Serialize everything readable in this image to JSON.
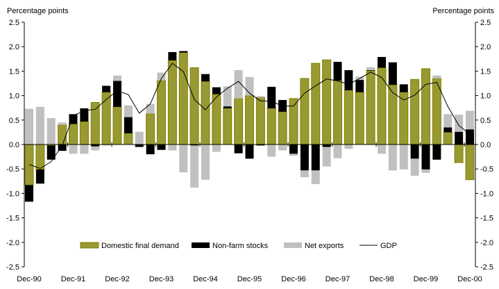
{
  "chart_data": {
    "type": "bar",
    "stacked": true,
    "title": "",
    "ylabel_left": "Percentage points",
    "ylabel_right": "Percentage points",
    "ylim": [
      -2.5,
      2.5
    ],
    "yticks": [
      "2.5",
      "2.0",
      "1.5",
      "1.0",
      "0.5",
      "0.0",
      "-0.5",
      "-1.0",
      "-1.5",
      "-2.0",
      "-2.5"
    ],
    "grid": false,
    "legend_position": "bottom-inside",
    "xtick_labels": [
      "Dec-90",
      "Dec-91",
      "Dec-92",
      "Dec-93",
      "Dec-94",
      "Dec-95",
      "Dec-96",
      "Dec-97",
      "Dec-98",
      "Dec-99",
      "Dec-00"
    ],
    "categories": [
      "Dec-90",
      "Mar-91",
      "Jun-91",
      "Sep-91",
      "Dec-91",
      "Mar-92",
      "Jun-92",
      "Sep-92",
      "Dec-92",
      "Mar-93",
      "Jun-93",
      "Sep-93",
      "Dec-93",
      "Mar-94",
      "Jun-94",
      "Sep-94",
      "Dec-94",
      "Mar-95",
      "Jun-95",
      "Sep-95",
      "Dec-95",
      "Mar-96",
      "Jun-96",
      "Sep-96",
      "Dec-96",
      "Mar-97",
      "Jun-97",
      "Sep-97",
      "Dec-97",
      "Mar-98",
      "Jun-98",
      "Sep-98",
      "Dec-98",
      "Mar-99",
      "Jun-99",
      "Sep-99",
      "Dec-99",
      "Mar-00",
      "Jun-00",
      "Sep-00",
      "Dec-00"
    ],
    "series": [
      {
        "name": "Domestic final demand",
        "kind": "bar",
        "color": "#999933",
        "border": "#808000",
        "values": [
          -0.83,
          -0.51,
          -0.02,
          0.4,
          0.42,
          0.47,
          0.86,
          1.07,
          0.77,
          0.23,
          0.0,
          0.63,
          1.31,
          1.72,
          1.88,
          1.57,
          1.29,
          1.03,
          0.74,
          0.94,
          1.0,
          0.96,
          0.74,
          0.67,
          0.94,
          1.35,
          1.66,
          1.73,
          1.31,
          1.11,
          1.07,
          1.51,
          1.57,
          1.22,
          1.07,
          1.33,
          1.55,
          1.35,
          0.25,
          -0.37,
          -0.72
        ]
      },
      {
        "name": "Non-farm stocks",
        "kind": "bar",
        "color": "#000000",
        "border": "#000000",
        "values": [
          -0.34,
          -0.29,
          -0.29,
          -0.13,
          0.2,
          0.27,
          -0.04,
          0.13,
          0.53,
          0.33,
          -0.05,
          -0.2,
          -0.11,
          0.17,
          0.03,
          -0.02,
          0.15,
          0.14,
          0.04,
          -0.18,
          -0.29,
          -0.02,
          0.44,
          0.24,
          -0.19,
          -0.53,
          -0.53,
          -0.05,
          0.38,
          0.41,
          0.25,
          0.01,
          0.22,
          0.46,
          0.16,
          -0.29,
          -0.51,
          -0.31,
          0.1,
          0.26,
          0.31
        ]
      },
      {
        "name": "Net exports",
        "kind": "bar",
        "color": "#c0c0c0",
        "border": "#c0c0c0",
        "values": [
          0.73,
          0.77,
          0.54,
          0.05,
          -0.19,
          -0.19,
          -0.08,
          -0.02,
          0.11,
          0.24,
          0.26,
          0.2,
          0.16,
          -0.12,
          -0.57,
          -0.86,
          -0.72,
          -0.15,
          0.41,
          0.58,
          0.38,
          0.03,
          -0.25,
          -0.12,
          -0.04,
          -0.14,
          -0.28,
          -0.4,
          -0.28,
          -0.09,
          0.07,
          0.06,
          -0.19,
          -0.53,
          -0.51,
          -0.35,
          -0.07,
          0.06,
          0.27,
          0.35,
          0.38
        ]
      },
      {
        "name": "GDP",
        "kind": "line",
        "color": "#000000",
        "values": [
          -0.41,
          -0.49,
          -0.35,
          -0.02,
          0.59,
          0.69,
          0.72,
          0.92,
          1.1,
          1.02,
          0.64,
          0.83,
          1.35,
          1.66,
          1.49,
          0.92,
          0.71,
          0.97,
          1.15,
          1.29,
          1.05,
          0.89,
          0.89,
          0.78,
          0.79,
          1.05,
          1.2,
          1.34,
          1.3,
          1.23,
          1.35,
          1.48,
          1.37,
          1.06,
          0.91,
          1.01,
          1.23,
          1.27,
          0.78,
          0.39,
          0.21
        ]
      }
    ]
  }
}
